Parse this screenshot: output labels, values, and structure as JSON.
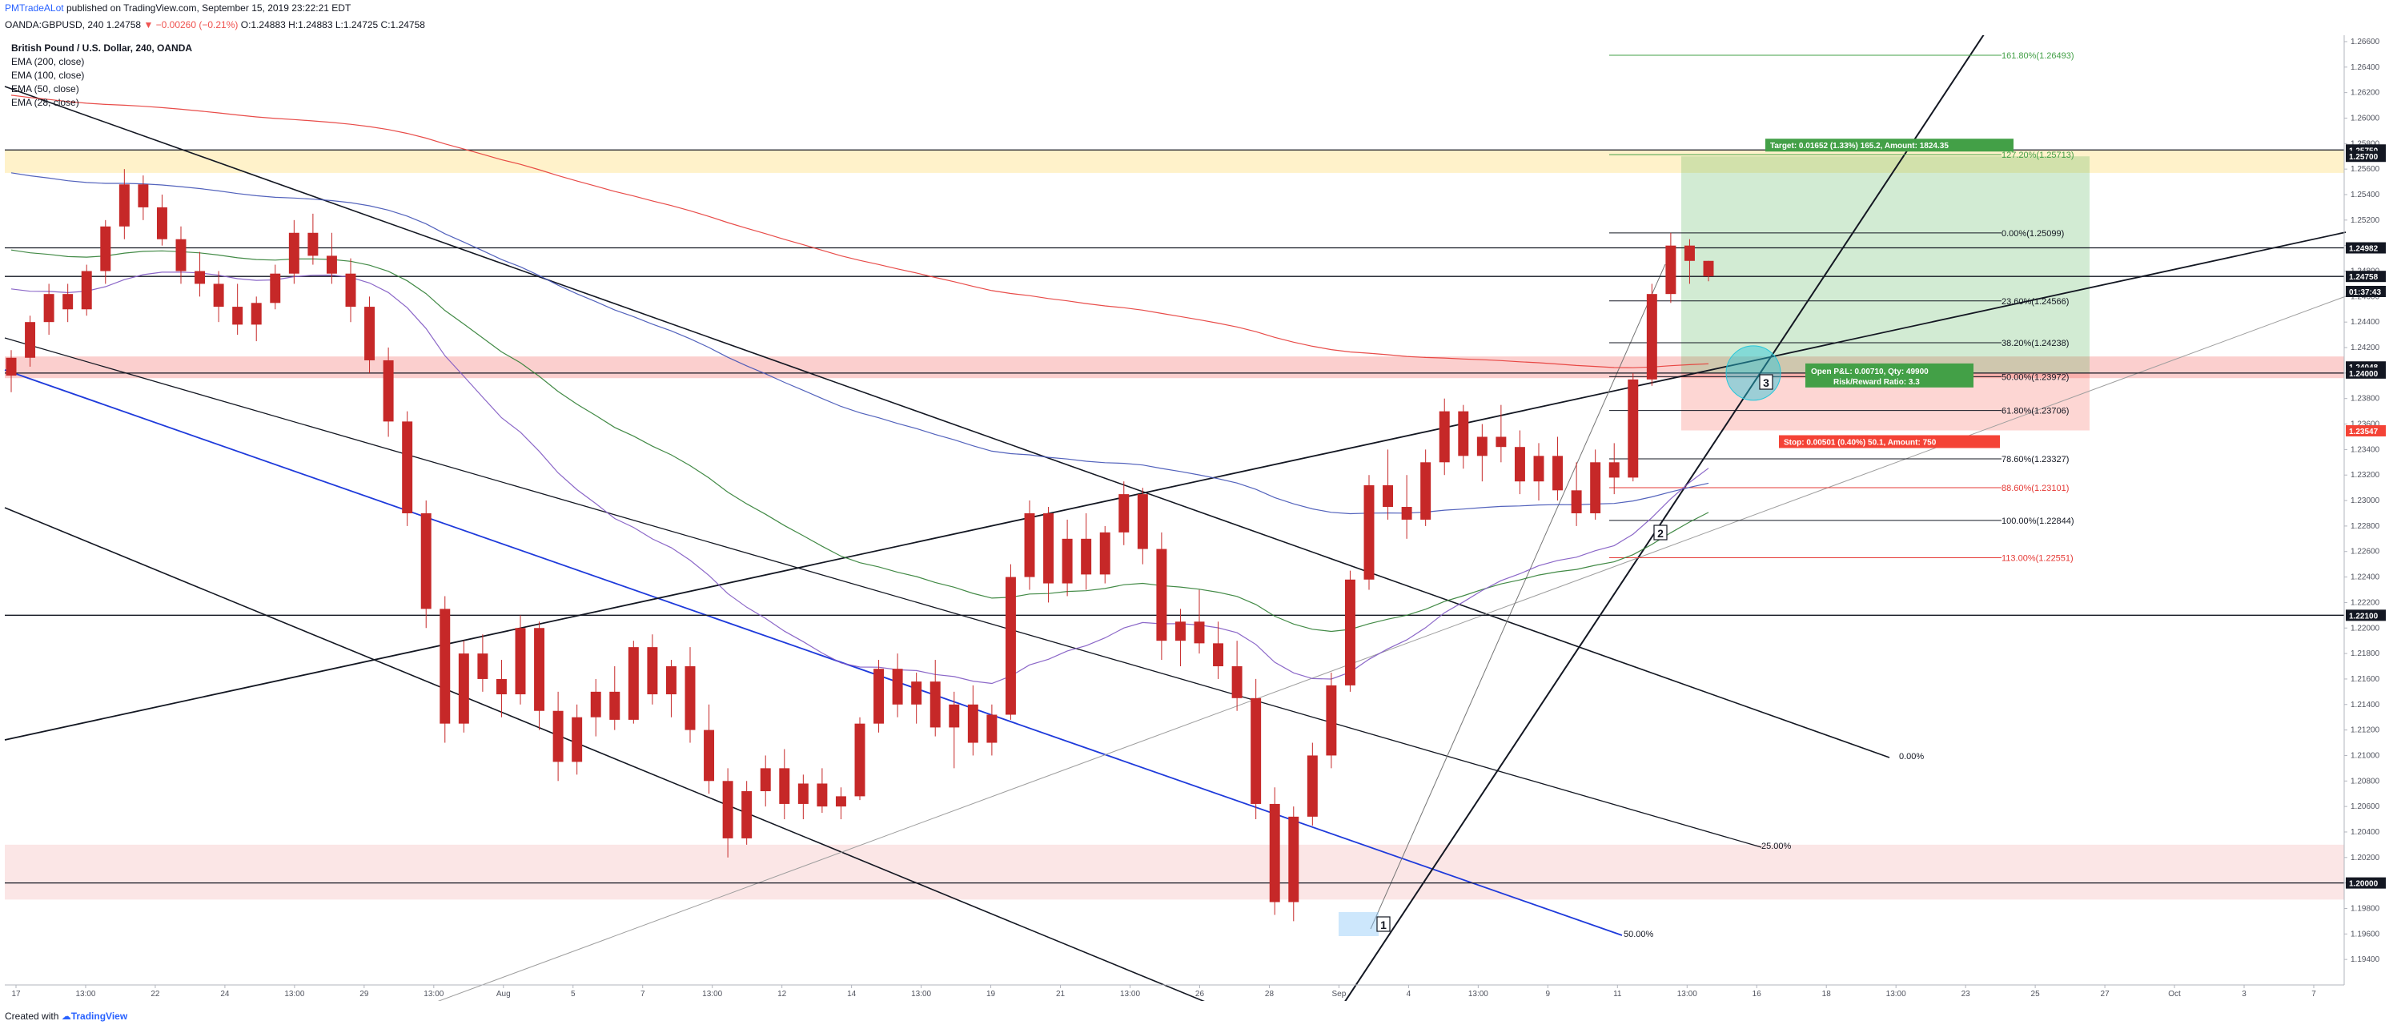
{
  "header": {
    "author": "PMTradeALot",
    "published_text": "published on TradingView.com, September 15, 2019 23:22:21 EDT",
    "symbol_line_a": "OANDA:GBPUSD, 240 1.24758",
    "change_text": "▼ −0.00260 (−0.21%)",
    "ohlc_text": "O:1.24883 H:1.24883 L:1.24725 C:1.24758"
  },
  "legend": {
    "title": "British Pound / U.S. Dollar, 240, OANDA",
    "items": [
      "EMA (200, close)",
      "EMA (100, close)",
      "EMA (50, close)",
      "EMA (28, close)"
    ]
  },
  "footer": {
    "created_with": "Created with",
    "brand": "TradingView"
  },
  "colors": {
    "up": "#26a69a",
    "down": "#ef5350",
    "candle": "#c62828",
    "ema200": "#e53935",
    "ema100": "#3f51b5",
    "ema50": "#2e7d32",
    "ema28": "#7e57c2",
    "target": "#43a047",
    "stop": "#f44336",
    "channel_blue": "#1e3adb"
  },
  "chart_data": {
    "type": "candlestick",
    "instrument": "GBPUSD",
    "timeframe": "240",
    "ylim": [
      1.192,
      1.2665
    ],
    "y_ticks": [
      "1.26600",
      "1.26400",
      "1.26200",
      "1.26000",
      "1.25800",
      "1.25600",
      "1.25400",
      "1.25200",
      "1.25000",
      "1.24800",
      "1.24600",
      "1.24400",
      "1.24200",
      "1.24000",
      "1.23800",
      "1.23600",
      "1.23400",
      "1.23200",
      "1.23000",
      "1.22800",
      "1.22600",
      "1.22400",
      "1.22200",
      "1.22000",
      "1.21800",
      "1.21600",
      "1.21400",
      "1.21200",
      "1.21000",
      "1.20800",
      "1.20600",
      "1.20400",
      "1.20200",
      "1.20000",
      "1.19800",
      "1.19600",
      "1.19400"
    ],
    "x_ticks": [
      "17",
      "13:00",
      "22",
      "24",
      "13:00",
      "29",
      "13:00",
      "Aug",
      "5",
      "7",
      "13:00",
      "12",
      "14",
      "13:00",
      "19",
      "21",
      "13:00",
      "26",
      "28",
      "Sep",
      "4",
      "13:00",
      "9",
      "11",
      "13:00",
      "16",
      "18",
      "13:00",
      "23",
      "25",
      "27",
      "Oct",
      "3",
      "7"
    ],
    "price_tags": [
      {
        "label": "1.25750",
        "value": 1.2575,
        "kind": "black"
      },
      {
        "label": "1.25700",
        "value": 1.257,
        "kind": "black"
      },
      {
        "label": "1.24982",
        "value": 1.24982,
        "kind": "black"
      },
      {
        "label": "1.24758",
        "value": 1.24758,
        "kind": "black"
      },
      {
        "label": "01:37:43",
        "value": 1.2464,
        "kind": "black"
      },
      {
        "label": "1.24048",
        "value": 1.24048,
        "kind": "black"
      },
      {
        "label": "1.24000",
        "value": 1.24,
        "kind": "black"
      },
      {
        "label": "1.23547",
        "value": 1.23547,
        "kind": "red"
      },
      {
        "label": "1.22100",
        "value": 1.221,
        "kind": "black"
      },
      {
        "label": "1.20000",
        "value": 1.2,
        "kind": "black"
      }
    ],
    "horizontal_levels": [
      1.2575,
      1.24982,
      1.24758,
      1.24,
      1.221,
      1.2
    ],
    "zones": [
      {
        "name": "supply",
        "top": 1.2575,
        "bottom": 1.2557
      },
      {
        "name": "resistance",
        "top": 1.2413,
        "bottom": 1.2396
      },
      {
        "name": "demand",
        "top": 1.203,
        "bottom": 1.1987
      }
    ],
    "fib_levels": [
      {
        "label": "161.80%(1.26493)",
        "value": 1.26493,
        "color": "#43a047"
      },
      {
        "label": "127.20%(1.25713)",
        "value": 1.25713,
        "color": "#43a047"
      },
      {
        "label": "0.00%(1.25099)",
        "value": 1.25099,
        "color": "#131722"
      },
      {
        "label": "23.60%(1.24566)",
        "value": 1.24566,
        "color": "#131722"
      },
      {
        "label": "38.20%(1.24238)",
        "value": 1.24238,
        "color": "#131722"
      },
      {
        "label": "50.00%(1.23972)",
        "value": 1.23972,
        "color": "#131722"
      },
      {
        "label": "61.80%(1.23706)",
        "value": 1.23706,
        "color": "#131722"
      },
      {
        "label": "78.60%(1.23327)",
        "value": 1.23327,
        "color": "#131722"
      },
      {
        "label": "88.60%(1.23101)",
        "value": 1.23101,
        "color": "#e53935"
      },
      {
        "label": "100.00%(1.22844)",
        "value": 1.22844,
        "color": "#131722"
      },
      {
        "label": "113.00%(1.22551)",
        "value": 1.22551,
        "color": "#e53935"
      }
    ],
    "position": {
      "entry": 1.24,
      "target": 1.257,
      "stop": 1.2355,
      "target_text": "Target: 0.01652 (1.33%) 165.2, Amount: 1824.35",
      "open_pl_text": "Open P&L: 0.00710, Qty: 49900",
      "risk_reward_text": "Risk/Reward Ratio: 3.3",
      "stop_text": "Stop: 0.00501 (0.40%) 50.1, Amount: 750"
    },
    "channel_labels": [
      "0.00%",
      "25.00%",
      "50.00%"
    ],
    "markers": [
      "1",
      "2",
      "3"
    ],
    "candles": [
      [
        1.2398,
        1.2418,
        1.2385,
        1.2412
      ],
      [
        1.2412,
        1.2445,
        1.2405,
        1.244
      ],
      [
        1.244,
        1.247,
        1.243,
        1.2462
      ],
      [
        1.2462,
        1.247,
        1.244,
        1.245
      ],
      [
        1.245,
        1.2485,
        1.2445,
        1.248
      ],
      [
        1.248,
        1.252,
        1.247,
        1.2515
      ],
      [
        1.2515,
        1.256,
        1.2505,
        1.2548
      ],
      [
        1.2548,
        1.2555,
        1.252,
        1.253
      ],
      [
        1.253,
        1.254,
        1.25,
        1.2505
      ],
      [
        1.2505,
        1.2515,
        1.247,
        1.248
      ],
      [
        1.248,
        1.2495,
        1.246,
        1.247
      ],
      [
        1.247,
        1.248,
        1.244,
        1.2452
      ],
      [
        1.2452,
        1.247,
        1.243,
        1.2438
      ],
      [
        1.2438,
        1.246,
        1.2425,
        1.2455
      ],
      [
        1.2455,
        1.2485,
        1.245,
        1.2478
      ],
      [
        1.2478,
        1.252,
        1.247,
        1.251
      ],
      [
        1.251,
        1.2525,
        1.2485,
        1.2492
      ],
      [
        1.2492,
        1.251,
        1.247,
        1.2478
      ],
      [
        1.2478,
        1.249,
        1.244,
        1.2452
      ],
      [
        1.2452,
        1.246,
        1.24,
        1.241
      ],
      [
        1.241,
        1.242,
        1.235,
        1.2362
      ],
      [
        1.2362,
        1.237,
        1.228,
        1.229
      ],
      [
        1.229,
        1.23,
        1.22,
        1.2215
      ],
      [
        1.2215,
        1.2225,
        1.211,
        1.2125
      ],
      [
        1.2125,
        1.219,
        1.2118,
        1.218
      ],
      [
        1.218,
        1.2195,
        1.215,
        1.216
      ],
      [
        1.216,
        1.2175,
        1.213,
        1.2148
      ],
      [
        1.2148,
        1.221,
        1.214,
        1.22
      ],
      [
        1.22,
        1.2205,
        1.212,
        1.2135
      ],
      [
        1.2135,
        1.215,
        1.208,
        1.2095
      ],
      [
        1.2095,
        1.214,
        1.2085,
        1.213
      ],
      [
        1.213,
        1.216,
        1.2115,
        1.215
      ],
      [
        1.215,
        1.217,
        1.212,
        1.2128
      ],
      [
        1.2128,
        1.219,
        1.2125,
        1.2185
      ],
      [
        1.2185,
        1.2195,
        1.214,
        1.2148
      ],
      [
        1.2148,
        1.2175,
        1.213,
        1.217
      ],
      [
        1.217,
        1.2185,
        1.211,
        1.212
      ],
      [
        1.212,
        1.214,
        1.207,
        1.208
      ],
      [
        1.208,
        1.209,
        1.202,
        1.2035
      ],
      [
        1.2035,
        1.208,
        1.203,
        1.2072
      ],
      [
        1.2072,
        1.21,
        1.206,
        1.209
      ],
      [
        1.209,
        1.2105,
        1.205,
        1.2062
      ],
      [
        1.2062,
        1.2085,
        1.205,
        1.2078
      ],
      [
        1.2078,
        1.209,
        1.2055,
        1.206
      ],
      [
        1.206,
        1.2075,
        1.205,
        1.2068
      ],
      [
        1.2068,
        1.213,
        1.2065,
        1.2125
      ],
      [
        1.2125,
        1.2175,
        1.2118,
        1.2168
      ],
      [
        1.2168,
        1.218,
        1.213,
        1.214
      ],
      [
        1.214,
        1.2165,
        1.2125,
        1.2158
      ],
      [
        1.2158,
        1.2175,
        1.2115,
        1.2122
      ],
      [
        1.2122,
        1.215,
        1.209,
        1.214
      ],
      [
        1.214,
        1.2155,
        1.21,
        1.211
      ],
      [
        1.211,
        1.214,
        1.21,
        1.2132
      ],
      [
        1.2132,
        1.225,
        1.2128,
        1.224
      ],
      [
        1.224,
        1.23,
        1.223,
        1.229
      ],
      [
        1.229,
        1.2295,
        1.222,
        1.2235
      ],
      [
        1.2235,
        1.2285,
        1.2225,
        1.227
      ],
      [
        1.227,
        1.229,
        1.223,
        1.2242
      ],
      [
        1.2242,
        1.228,
        1.2235,
        1.2275
      ],
      [
        1.2275,
        1.2315,
        1.2265,
        1.2305
      ],
      [
        1.2305,
        1.231,
        1.225,
        1.2262
      ],
      [
        1.2262,
        1.2275,
        1.2175,
        1.219
      ],
      [
        1.219,
        1.2215,
        1.217,
        1.2205
      ],
      [
        1.2205,
        1.223,
        1.218,
        1.2188
      ],
      [
        1.2188,
        1.2205,
        1.216,
        1.217
      ],
      [
        1.217,
        1.219,
        1.2135,
        1.2145
      ],
      [
        1.2145,
        1.216,
        1.205,
        1.2062
      ],
      [
        1.2062,
        1.2075,
        1.1975,
        1.1985
      ],
      [
        1.1985,
        1.206,
        1.197,
        1.2052
      ],
      [
        1.2052,
        1.211,
        1.2045,
        1.21
      ],
      [
        1.21,
        1.2165,
        1.209,
        1.2155
      ],
      [
        1.2155,
        1.2245,
        1.215,
        1.2238
      ],
      [
        1.2238,
        1.232,
        1.223,
        1.2312
      ],
      [
        1.2312,
        1.234,
        1.2285,
        1.2295
      ],
      [
        1.2295,
        1.232,
        1.227,
        1.2285
      ],
      [
        1.2285,
        1.234,
        1.228,
        1.233
      ],
      [
        1.233,
        1.238,
        1.232,
        1.237
      ],
      [
        1.237,
        1.2375,
        1.2325,
        1.2335
      ],
      [
        1.2335,
        1.236,
        1.2315,
        1.235
      ],
      [
        1.235,
        1.2375,
        1.233,
        1.2342
      ],
      [
        1.2342,
        1.2355,
        1.2305,
        1.2315
      ],
      [
        1.2315,
        1.2345,
        1.23,
        1.2335
      ],
      [
        1.2335,
        1.235,
        1.23,
        1.2308
      ],
      [
        1.2308,
        1.233,
        1.228,
        1.229
      ],
      [
        1.229,
        1.234,
        1.2285,
        1.233
      ],
      [
        1.233,
        1.2345,
        1.2305,
        1.2318
      ],
      [
        1.2318,
        1.24,
        1.2315,
        1.2395
      ],
      [
        1.2395,
        1.247,
        1.239,
        1.2462
      ],
      [
        1.2462,
        1.251,
        1.2455,
        1.25
      ],
      [
        1.25,
        1.2505,
        1.247,
        1.2488
      ],
      [
        1.2488,
        1.2488,
        1.2472,
        1.2476
      ]
    ]
  }
}
